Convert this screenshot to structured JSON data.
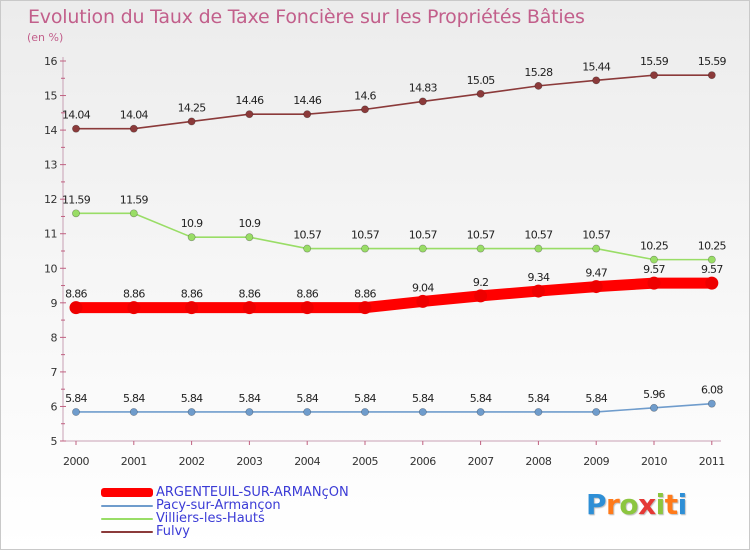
{
  "title": "Evolution du Taux de Taxe Foncière sur les Propriétés Bâties",
  "unit": "(en %)",
  "logo": {
    "letters": [
      "P",
      "r",
      "o",
      "x",
      "i",
      "t",
      "i"
    ],
    "colors": [
      "#2e8fd6",
      "#ff7a1a",
      "#8cc63f",
      "#e53935",
      "#8cc63f",
      "#ff7a1a",
      "#2e8fd6"
    ]
  },
  "chart_data": {
    "type": "line",
    "title": "Evolution du Taux de Taxe Foncière sur les Propriétés Bâties",
    "ylabel": "(en %)",
    "x": [
      "2000",
      "2001",
      "2002",
      "2003",
      "2004",
      "2005",
      "2006",
      "2007",
      "2008",
      "2009",
      "2010",
      "2011"
    ],
    "yticks": [
      "5",
      "6",
      "7",
      "8",
      "9",
      "10",
      "11",
      "12",
      "13",
      "14",
      "15",
      "16"
    ],
    "ylim": [
      5,
      16
    ],
    "grid": false,
    "legend_position": "bottom-left",
    "series": [
      {
        "name": "ARGENTEUIL-SUR-ARMANçON",
        "color": "#ff0000",
        "values": [
          8.86,
          8.86,
          8.86,
          8.86,
          8.86,
          8.86,
          9.04,
          9.2,
          9.34,
          9.47,
          9.57,
          9.57
        ],
        "labels": [
          "8.86",
          "8.86",
          "8.86",
          "8.86",
          "8.86",
          "8.86",
          "9.04",
          "9.2",
          "9.34",
          "9.47",
          "9.57",
          "9.57"
        ]
      },
      {
        "name": "Pacy-sur-Armançon",
        "color": "#6f9ccc",
        "values": [
          5.84,
          5.84,
          5.84,
          5.84,
          5.84,
          5.84,
          5.84,
          5.84,
          5.84,
          5.84,
          5.96,
          6.08
        ],
        "labels": [
          "5.84",
          "5.84",
          "5.84",
          "5.84",
          "5.84",
          "5.84",
          "5.84",
          "5.84",
          "5.84",
          "5.84",
          "5.96",
          "6.08"
        ]
      },
      {
        "name": "Villiers-les-Hauts",
        "color": "#99dd66",
        "values": [
          11.59,
          11.59,
          10.9,
          10.9,
          10.57,
          10.57,
          10.57,
          10.57,
          10.57,
          10.57,
          10.25,
          10.25
        ],
        "labels": [
          "11.59",
          "11.59",
          "10.9",
          "10.9",
          "10.57",
          "10.57",
          "10.57",
          "10.57",
          "10.57",
          "10.57",
          "10.25",
          "10.25"
        ]
      },
      {
        "name": "Fulvy",
        "color": "#8b3a3a",
        "values": [
          14.04,
          14.04,
          14.25,
          14.46,
          14.46,
          14.6,
          14.83,
          15.05,
          15.28,
          15.44,
          15.59,
          15.59
        ],
        "labels": [
          "14.04",
          "14.04",
          "14.25",
          "14.46",
          "14.46",
          "14.6",
          "14.83",
          "15.05",
          "15.28",
          "15.44",
          "15.59",
          "15.59"
        ]
      }
    ]
  }
}
